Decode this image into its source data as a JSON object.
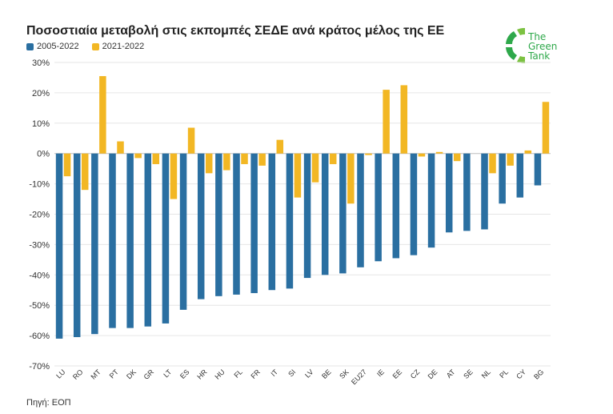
{
  "title": "Ποσοστιαία μεταβολή στις εκπομπές ΣΕΔΕ ανά κράτος μέλος της ΕΕ",
  "source": "Πηγή: ΕΟΠ",
  "logo": {
    "line1": "The",
    "line2": "Green",
    "line3": "Tank",
    "color": "#2ea84a"
  },
  "colors": {
    "series1": "#2a6fa1",
    "series2": "#f2b724",
    "grid": "#e6e6e6"
  },
  "chart_data": {
    "type": "bar",
    "title": "Ποσοστιαία μεταβολή στις εκπομπές ΣΕΔΕ ανά κράτος μέλος της ΕΕ",
    "xlabel": "",
    "ylabel": "",
    "ylim": [
      -70,
      30
    ],
    "yticks": [
      30,
      20,
      10,
      0,
      -10,
      -20,
      -30,
      -40,
      -50,
      -60,
      -70
    ],
    "ytick_labels": [
      "30%",
      "20%",
      "10%",
      "0%",
      "-10%",
      "-20%",
      "-30%",
      "-40%",
      "-50%",
      "-60%",
      "-70%"
    ],
    "legend_position": "top-left",
    "grid": true,
    "categories": [
      "LU",
      "RO",
      "MT",
      "PT",
      "DK",
      "GR",
      "LT",
      "ES",
      "HR",
      "HU",
      "FL",
      "FR",
      "IT",
      "SI",
      "LV",
      "BE",
      "SK",
      "EU27",
      "IE",
      "EE",
      "CZ",
      "DE",
      "AT",
      "SE",
      "NL",
      "PL",
      "CY",
      "BG"
    ],
    "series": [
      {
        "name": "2005-2022",
        "values": [
          -61,
          -60.5,
          -59.5,
          -57.5,
          -57.5,
          -57,
          -56,
          -51.5,
          -48,
          -47,
          -46.5,
          -46,
          -45,
          -44.5,
          -41,
          -40,
          -39.5,
          -37.5,
          -35.5,
          -34.5,
          -33.5,
          -31,
          -26,
          -25.5,
          -25,
          -16.5,
          -14.5,
          -10.5
        ]
      },
      {
        "name": "2021-2022",
        "values": [
          -7.5,
          -12,
          25.5,
          4,
          -1.5,
          -3.5,
          -15,
          8.5,
          -6.5,
          -5.5,
          -3.5,
          -4,
          4.5,
          -14.5,
          -9.5,
          -3.5,
          -16.5,
          -0.5,
          21,
          22.5,
          -1,
          0.5,
          -2.5,
          0,
          -6.5,
          -4,
          1,
          17
        ]
      }
    ]
  }
}
